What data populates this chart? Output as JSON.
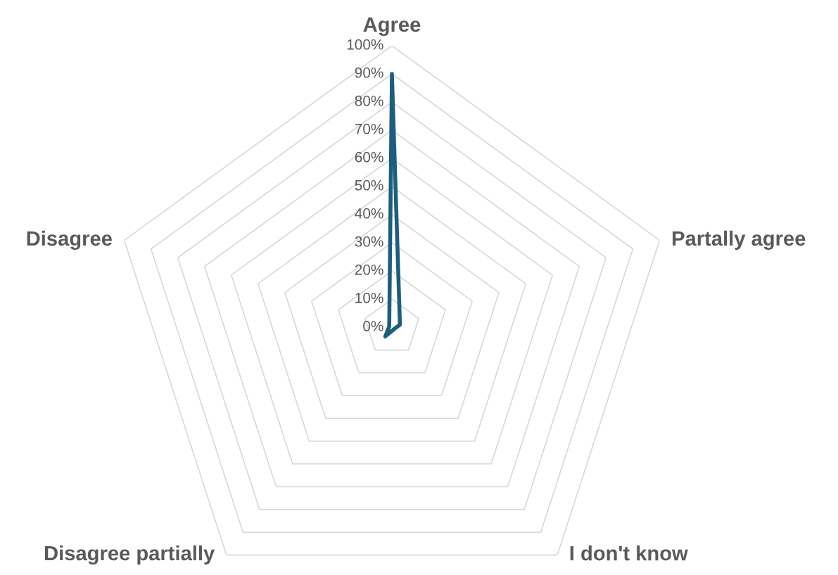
{
  "chart_data": {
    "type": "radar",
    "categories": [
      "Agree",
      "Partally agree",
      "I don't know",
      "Disagree partially",
      "Disagree"
    ],
    "series": [
      {
        "color": "#1b5e7e",
        "values": [
          90,
          3,
          1,
          4,
          1
        ]
      }
    ],
    "ylim": [
      0,
      100
    ],
    "yticks": [
      {
        "value": 0,
        "label": "0%"
      },
      {
        "value": 10,
        "label": "10%"
      },
      {
        "value": 20,
        "label": "20%"
      },
      {
        "value": 30,
        "label": "30%"
      },
      {
        "value": 40,
        "label": "40%"
      },
      {
        "value": 50,
        "label": "50%"
      },
      {
        "value": 60,
        "label": "60%"
      },
      {
        "value": 70,
        "label": "70%"
      },
      {
        "value": 80,
        "label": "80%"
      },
      {
        "value": 90,
        "label": "90%"
      },
      {
        "value": 100,
        "label": "100%"
      }
    ],
    "grid": true,
    "marker": "none"
  }
}
